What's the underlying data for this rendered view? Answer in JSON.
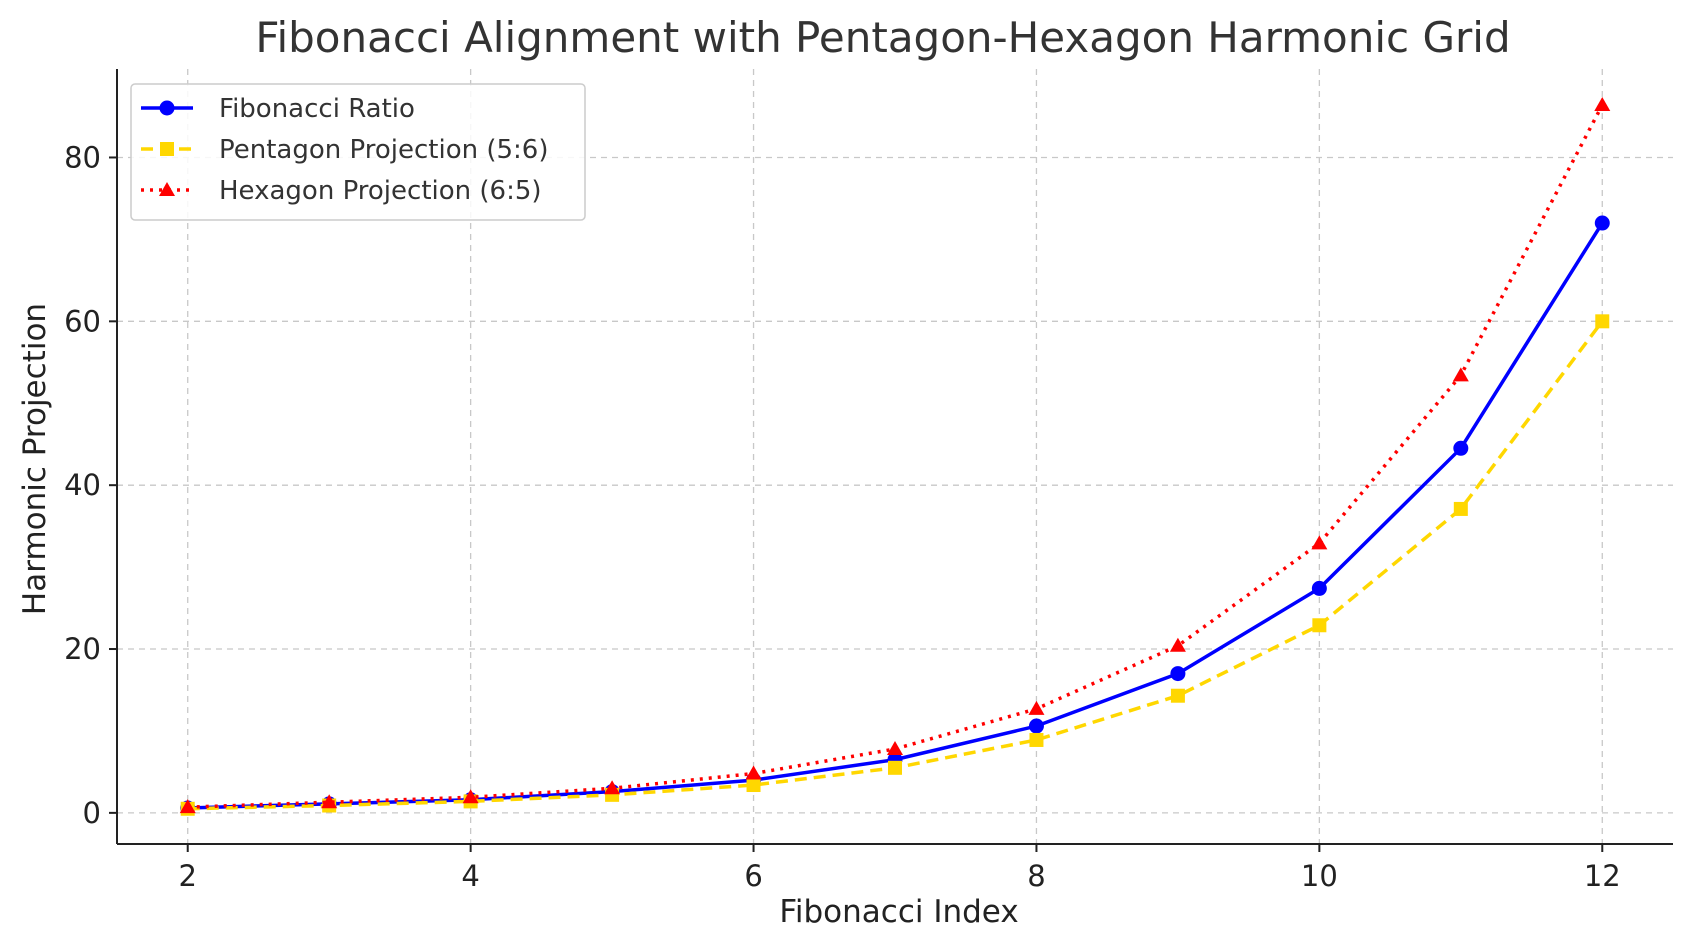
{
  "chart_data": {
    "type": "line",
    "title": "Fibonacci Alignment with Pentagon-Hexagon Harmonic Grid",
    "xlabel": "Fibonacci Index",
    "ylabel": "Harmonic Projection",
    "xlim": [
      1.5,
      12.5
    ],
    "ylim": [
      -3.8,
      90.8
    ],
    "xticks": [
      2,
      4,
      6,
      8,
      10,
      12
    ],
    "yticks": [
      0,
      20,
      40,
      60,
      80
    ],
    "grid": true,
    "legend_position": "upper-left",
    "x": [
      2,
      3,
      4,
      5,
      6,
      7,
      8,
      9,
      10,
      11,
      12
    ],
    "series": [
      {
        "name": "Fibonacci Ratio",
        "color": "#0000ff",
        "line_style": "solid",
        "marker": "circle",
        "values": [
          0.6,
          1.1,
          1.6,
          2.6,
          4.0,
          6.5,
          10.6,
          17.0,
          27.4,
          44.5,
          72.0
        ]
      },
      {
        "name": "Pentagon Projection (5:6)",
        "color": "#ffd700",
        "line_style": "dashed",
        "marker": "square",
        "values": [
          0.5,
          0.9,
          1.4,
          2.2,
          3.4,
          5.5,
          8.9,
          14.3,
          22.9,
          37.1,
          60.0
        ]
      },
      {
        "name": "Hexagon Projection (6:5)",
        "color": "#ff0000",
        "line_style": "dotted",
        "marker": "triangle",
        "values": [
          0.7,
          1.3,
          1.9,
          3.0,
          4.8,
          7.8,
          12.7,
          20.4,
          32.9,
          53.4,
          86.4
        ]
      }
    ]
  }
}
